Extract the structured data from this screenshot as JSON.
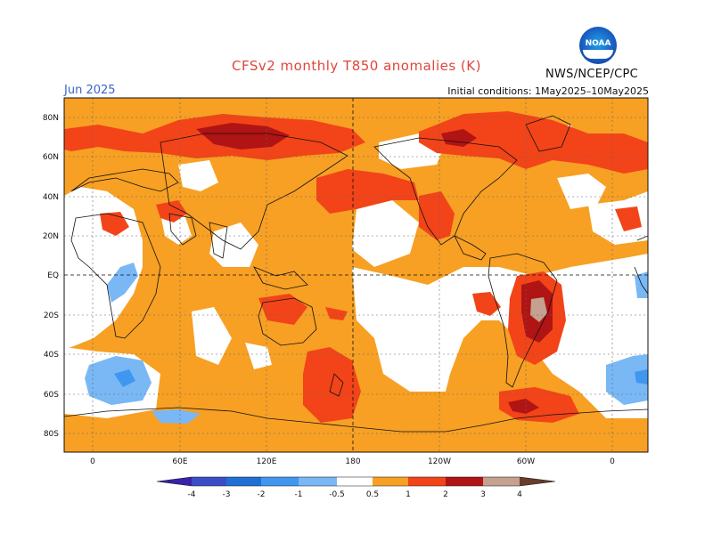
{
  "header": {
    "title": "CFSv2 monthly T850 anomalies (K)",
    "month": "Jun 2025",
    "initial_conditions": "Initial conditions: 1May2025–10May2025",
    "agency": "NWS/NCEP/CPC",
    "logo_text": "NOAA"
  },
  "map": {
    "lat_labels": [
      "80N",
      "60N",
      "40N",
      "20N",
      "EQ",
      "20S",
      "40S",
      "60S",
      "80S"
    ],
    "lon_labels": [
      "0",
      "60E",
      "120E",
      "180",
      "120W",
      "60W",
      "0"
    ]
  },
  "colorbar": {
    "labels": [
      "-4",
      "-3",
      "-2",
      "-1",
      "-0.5",
      "0.5",
      "1",
      "2",
      "3",
      "4"
    ],
    "colors": [
      "#3b22a8",
      "#3c4cc8",
      "#1f6fd6",
      "#3f97ef",
      "#79b8f5",
      "#ffffff",
      "#f7a023",
      "#f24418",
      "#b01414",
      "#c4a190",
      "#6a3b2f"
    ]
  },
  "colors": {
    "title": "#e0453a",
    "month": "#3a63c8",
    "anomaly_0_5": "#f7a023",
    "anomaly_1": "#f24418",
    "anomaly_2": "#b01414",
    "anomaly_3": "#c4a190",
    "anomaly_neg_0_5": "#79b8f5",
    "anomaly_neg_1": "#3f97ef"
  }
}
